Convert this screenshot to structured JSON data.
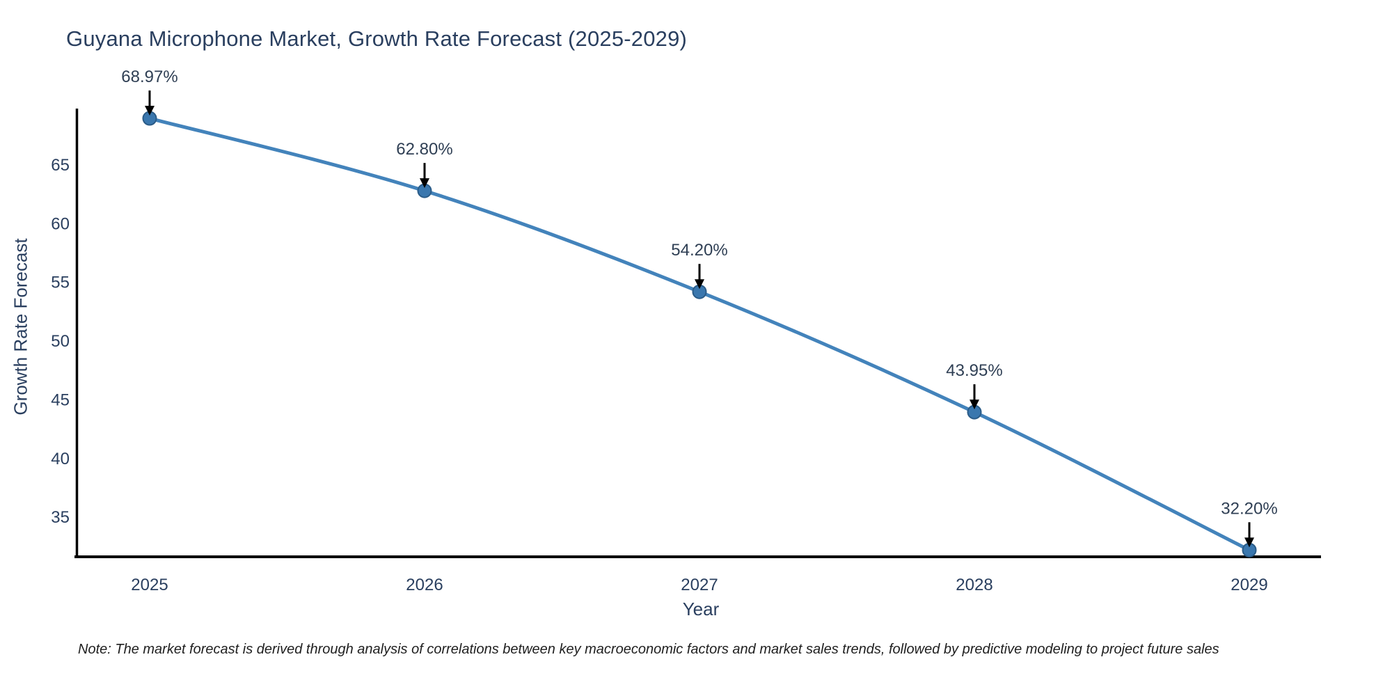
{
  "title": "Guyana Microphone Market, Growth Rate Forecast (2025-2029)",
  "footnote": "Note: The market forecast is derived through analysis of correlations between key macroeconomic factors and market sales trends, followed by predictive modeling to project future sales",
  "chart_data": {
    "type": "line",
    "title": "Guyana Microphone Market, Growth Rate Forecast (2025-2029)",
    "xlabel": "Year",
    "ylabel": "Growth Rate Forecast",
    "x": [
      2025,
      2026,
      2027,
      2028,
      2029
    ],
    "series": [
      {
        "name": "Growth Rate Forecast",
        "values": [
          68.97,
          62.8,
          54.2,
          43.95,
          32.2
        ]
      }
    ],
    "point_labels": [
      "68.97%",
      "62.80%",
      "54.20%",
      "43.95%",
      "32.20%"
    ],
    "yticks": [
      35,
      40,
      45,
      50,
      55,
      60,
      65
    ],
    "xticks": [
      "2025",
      "2026",
      "2027",
      "2028",
      "2029"
    ],
    "ylim": [
      31.5,
      69.8
    ],
    "grid": false,
    "legend": "none",
    "line_color": "#4383bb",
    "marker_color": "#3a77ae",
    "marker_edge_color": "#2b5c88",
    "arrow_color": "#000000",
    "axis_color": "#000000",
    "text_color": "#2a3f5f"
  }
}
